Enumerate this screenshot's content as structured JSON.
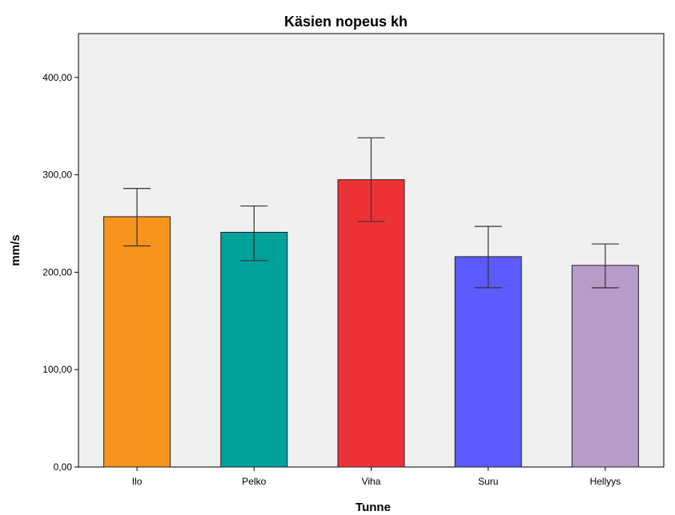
{
  "chart_data": {
    "type": "bar",
    "title": "Käsien nopeus kh",
    "xlabel": "Tunne",
    "ylabel": "mm/s",
    "categories": [
      "Ilo",
      "Pelko",
      "Viha",
      "Suru",
      "Hellyys"
    ],
    "values": [
      257,
      241,
      295,
      216,
      207
    ],
    "error_bars": [
      {
        "low": 227,
        "high": 286
      },
      {
        "low": 212,
        "high": 268
      },
      {
        "low": 252,
        "high": 338
      },
      {
        "low": 184,
        "high": 247
      },
      {
        "low": 184,
        "high": 229
      }
    ],
    "colors": [
      "#f7941d",
      "#00a19a",
      "#ed3237",
      "#5b5bff",
      "#b79bc8"
    ],
    "ylim": [
      0,
      445
    ],
    "yticks": [
      0,
      100,
      200,
      300,
      400
    ],
    "ytick_labels": [
      "0,00",
      "100,00",
      "200,00",
      "300,00",
      "400,00"
    ],
    "plot_background": "#f0f0f0",
    "grid": false,
    "legend": "none"
  }
}
